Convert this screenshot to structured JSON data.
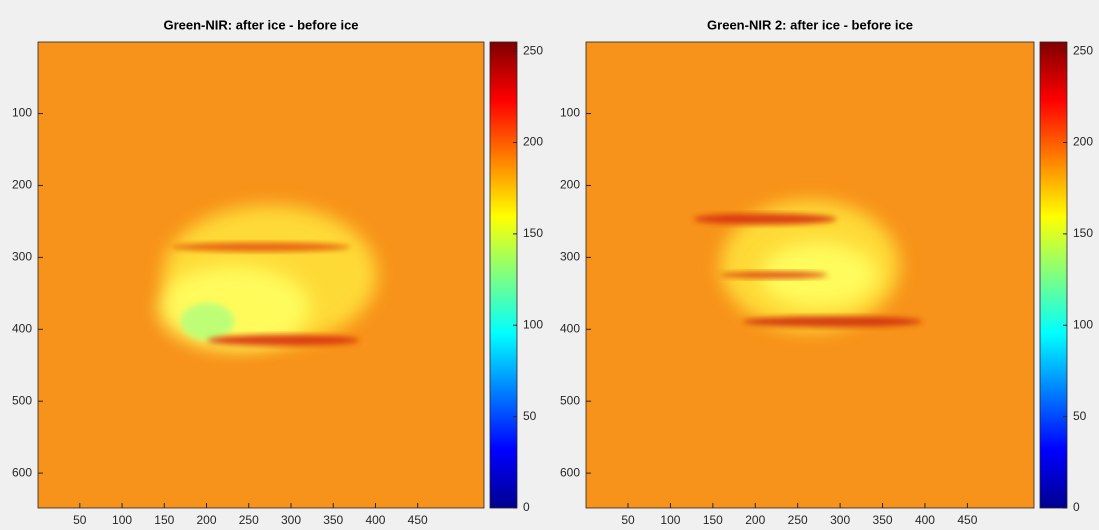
{
  "chart_data": [
    {
      "type": "image",
      "title": "Green-NIR: after ice - before ice",
      "xlim": [
        0.5,
        528.5
      ],
      "ylim": [
        0.5,
        648.5
      ],
      "xticks": [
        50,
        100,
        150,
        200,
        250,
        300,
        350,
        400,
        450
      ],
      "yticks": [
        100,
        200,
        300,
        400,
        500,
        600
      ],
      "clim": [
        0,
        255
      ],
      "cticks": [
        0,
        50,
        100,
        150,
        200,
        250
      ],
      "colormap": "jet"
    },
    {
      "type": "image",
      "title": "Green-NIR 2: after ice - before ice",
      "xlim": [
        0.5,
        528.5
      ],
      "ylim": [
        0.5,
        648.5
      ],
      "xticks": [
        50,
        100,
        150,
        200,
        250,
        300,
        350,
        400,
        450
      ],
      "yticks": [
        100,
        200,
        300,
        400,
        500,
        600
      ],
      "clim": [
        0,
        255
      ],
      "cticks": [
        0,
        50,
        100,
        150,
        200,
        250
      ],
      "colormap": "jet"
    }
  ]
}
